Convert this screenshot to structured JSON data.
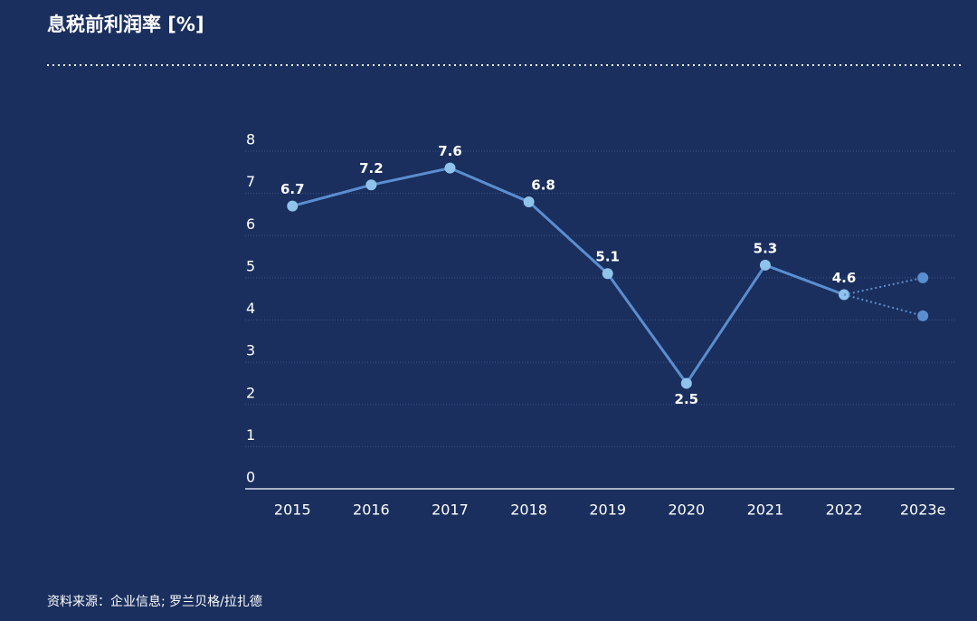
{
  "chart_data": {
    "type": "line",
    "title": "息税前利润率 [%]",
    "categories": [
      "2015",
      "2016",
      "2017",
      "2018",
      "2019",
      "2020",
      "2021",
      "2022",
      "2023e"
    ],
    "series": [
      {
        "color": "#5b8ed0",
        "marker_color": "#8fc3ec",
        "values": [
          6.7,
          7.2,
          7.6,
          6.8,
          5.1,
          2.5,
          5.3,
          4.6,
          null
        ],
        "labels": true
      },
      {
        "color": "#5b8ed0",
        "marker_color": "#5b8ed0",
        "dotted": true,
        "values": [
          null,
          null,
          null,
          null,
          null,
          null,
          null,
          4.6,
          5.0
        ]
      },
      {
        "color": "#5b8ed0",
        "marker_color": "#5b8ed0",
        "dotted": true,
        "values": [
          null,
          null,
          null,
          null,
          null,
          null,
          null,
          4.6,
          4.1
        ]
      }
    ],
    "ylim": [
      0,
      8
    ],
    "yticks": [
      0,
      1,
      2,
      3,
      4,
      5,
      6,
      7,
      8
    ],
    "grid": true,
    "source": "资料来源：企业信息; 罗兰贝格/拉扎德"
  }
}
